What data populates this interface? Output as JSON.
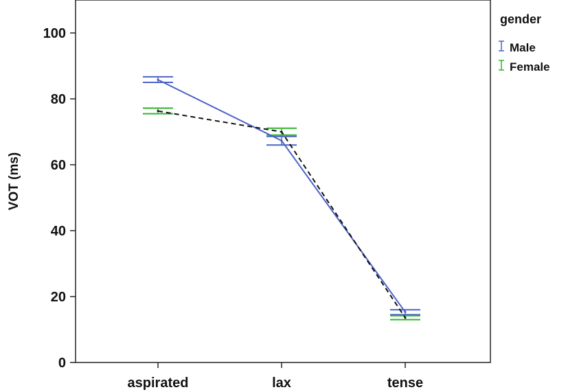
{
  "chart_data": {
    "type": "line",
    "title": "",
    "xlabel": "",
    "ylabel": "VOT (ms)",
    "ylim": [
      0,
      110
    ],
    "yticks": [
      0,
      20,
      40,
      60,
      80,
      100
    ],
    "categories": [
      "aspirated",
      "lax",
      "tense"
    ],
    "grid": false,
    "legend": {
      "title": "gender",
      "position": "right"
    },
    "series": [
      {
        "name": "Male",
        "color": "#4a63c6",
        "line_style": "solid",
        "values": [
          85.8,
          67.3,
          15.3
        ],
        "error_low": [
          85.0,
          66.0,
          14.5
        ],
        "error_high": [
          86.7,
          68.6,
          16.0
        ]
      },
      {
        "name": "Female",
        "color": "#2db52d",
        "line_style": "dashed",
        "values": [
          76.3,
          70.0,
          13.6
        ],
        "error_low": [
          75.5,
          69.0,
          13.0
        ],
        "error_high": [
          77.2,
          71.1,
          14.2
        ]
      }
    ]
  }
}
